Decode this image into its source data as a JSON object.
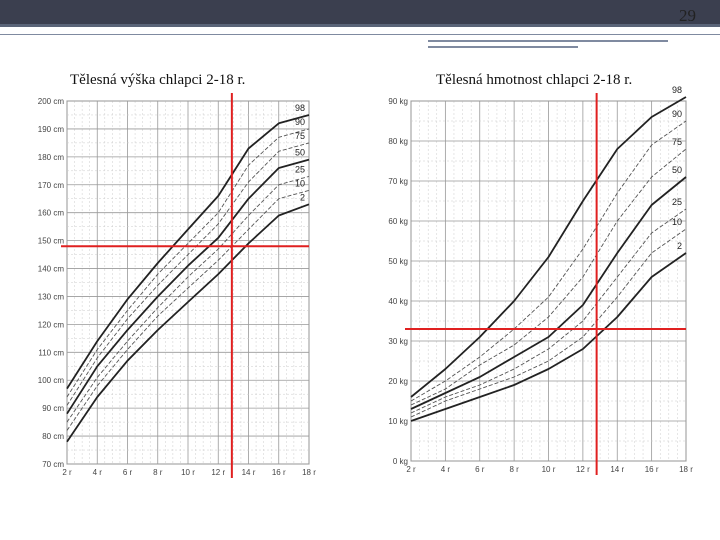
{
  "slide": {
    "page_number": "29"
  },
  "chart_data": [
    {
      "type": "line",
      "title": "Tělesná výška chlapci 2-18 r.",
      "xlabel": "",
      "ylabel": "",
      "x_ticks": [
        "2 r",
        "4 r",
        "6 r",
        "8 r",
        "10 r",
        "12 r",
        "14 r",
        "16 r",
        "18 r"
      ],
      "y_ticks": [
        "70 cm",
        "80 cm",
        "90 cm",
        "100 cm",
        "110 cm",
        "120 cm",
        "130 cm",
        "140 cm",
        "150 cm",
        "160 cm",
        "170 cm",
        "180 cm",
        "190 cm",
        "200 cm"
      ],
      "xlim": [
        2,
        18
      ],
      "ylim": [
        70,
        200
      ],
      "grid": true,
      "x": [
        2,
        4,
        6,
        8,
        10,
        12,
        14,
        16,
        18
      ],
      "series": [
        {
          "name": "98",
          "values": [
            97,
            114,
            129,
            142,
            154,
            166,
            183,
            192,
            195
          ],
          "style": "bold"
        },
        {
          "name": "90",
          "values": [
            94,
            111,
            125,
            138,
            149,
            160,
            177,
            187,
            190
          ],
          "style": "dash"
        },
        {
          "name": "75",
          "values": [
            91,
            108,
            122,
            134,
            145,
            156,
            171,
            182,
            185
          ],
          "style": "dash"
        },
        {
          "name": "50",
          "values": [
            88,
            105,
            118,
            130,
            141,
            151,
            165,
            176,
            179
          ],
          "style": "bold"
        },
        {
          "name": "25",
          "values": [
            85,
            101,
            114,
            126,
            137,
            147,
            159,
            170,
            173
          ],
          "style": "dash"
        },
        {
          "name": "10",
          "values": [
            82,
            98,
            111,
            123,
            133,
            143,
            154,
            165,
            168
          ],
          "style": "dash"
        },
        {
          "name": "2",
          "values": [
            78,
            94,
            107,
            118,
            128,
            138,
            149,
            159,
            163
          ],
          "style": "bold"
        }
      ],
      "markers": {
        "vertical_x": 12.9,
        "horizontal_y": 148,
        "color": "#e02020"
      }
    },
    {
      "type": "line",
      "title": "Tělesná hmotnost chlapci 2-18 r.",
      "xlabel": "",
      "ylabel": "",
      "x_ticks": [
        "2 r",
        "4 r",
        "6 r",
        "8 r",
        "10 r",
        "12 r",
        "14 r",
        "16 r",
        "18 r"
      ],
      "y_ticks": [
        "0 kg",
        "10 kg",
        "20 kg",
        "30 kg",
        "40 kg",
        "50 kg",
        "60 kg",
        "70 kg",
        "80 kg",
        "90 kg"
      ],
      "xlim": [
        2,
        18
      ],
      "ylim": [
        0,
        90
      ],
      "grid": true,
      "x": [
        2,
        4,
        6,
        8,
        10,
        12,
        14,
        16,
        18
      ],
      "series": [
        {
          "name": "98",
          "values": [
            16,
            23,
            31,
            40,
            51,
            65,
            78,
            86,
            91
          ],
          "style": "bold"
        },
        {
          "name": "90",
          "values": [
            15,
            20,
            26,
            33,
            41,
            53,
            67,
            79,
            85
          ],
          "style": "dash"
        },
        {
          "name": "75",
          "values": [
            14,
            18,
            24,
            29,
            36,
            46,
            60,
            71,
            78
          ],
          "style": "dash"
        },
        {
          "name": "50",
          "values": [
            13,
            17,
            21,
            26,
            31,
            39,
            52,
            64,
            71
          ],
          "style": "bold"
        },
        {
          "name": "25",
          "values": [
            12,
            16,
            19,
            23,
            28,
            35,
            46,
            57,
            63
          ],
          "style": "dash"
        },
        {
          "name": "10",
          "values": [
            11,
            15,
            18,
            21,
            25,
            31,
            41,
            52,
            58
          ],
          "style": "dash"
        },
        {
          "name": "2",
          "values": [
            10,
            13,
            16,
            19,
            23,
            28,
            36,
            46,
            52
          ],
          "style": "bold"
        }
      ],
      "markers": {
        "vertical_x": 12.8,
        "horizontal_y": 33,
        "color": "#e02020"
      }
    }
  ]
}
